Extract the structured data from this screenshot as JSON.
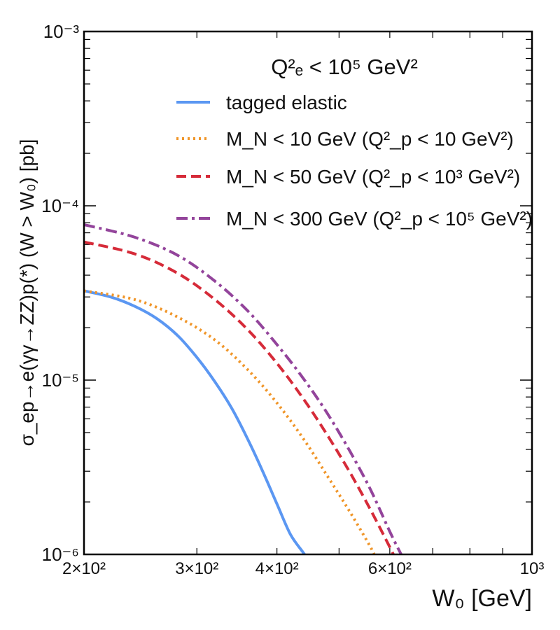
{
  "chart_data": {
    "type": "line",
    "x_scale": "log",
    "y_scale": "log",
    "xlim": [
      200,
      1000
    ],
    "ylim": [
      1e-06,
      0.001
    ],
    "xlabel": "W₀ [GeV]",
    "ylabel": "σ_ep→e(γγ→ZZ)p(*) (W > W₀) [pb]",
    "x_tick_labels": [
      {
        "value": 200,
        "label": "2×10²"
      },
      {
        "value": 300,
        "label": "3×10²"
      },
      {
        "value": 400,
        "label": "4×10²"
      },
      {
        "value": 600,
        "label": "6×10²"
      },
      {
        "value": 1000,
        "label": "10³"
      }
    ],
    "y_tick_labels": [
      {
        "value": 1e-06,
        "label": "10⁻⁶"
      },
      {
        "value": 1e-05,
        "label": "10⁻⁵"
      },
      {
        "value": 0.0001,
        "label": "10⁻⁴"
      },
      {
        "value": 0.001,
        "label": "10⁻³"
      }
    ],
    "legend_title": "Q²ₑ < 10⁵ GeV²",
    "legend_position": "top-right",
    "grid": false,
    "series": [
      {
        "name": "tagged elastic",
        "color": "#5b97f2",
        "style": "solid",
        "x": [
          200,
          220,
          240,
          260,
          280,
          300,
          320,
          340,
          360,
          380,
          400,
          420,
          440,
          450
        ],
        "y": [
          3.25e-05,
          3e-05,
          2.65e-05,
          2.25e-05,
          1.8e-05,
          1.35e-05,
          9.8e-06,
          6.9e-06,
          4.6e-06,
          3e-06,
          1.95e-06,
          1.3e-06,
          1.02e-06,
          9e-07
        ]
      },
      {
        "name": "M_N < 10 GeV (Q²_p < 10 GeV²)",
        "color": "#f0962a",
        "style": "dotted",
        "x": [
          200,
          240,
          280,
          320,
          360,
          400,
          440,
          480,
          520,
          560,
          570
        ],
        "y": [
          3.25e-05,
          2.9e-05,
          2.3e-05,
          1.7e-05,
          1.15e-05,
          7.4e-06,
          4.6e-06,
          2.8e-06,
          1.75e-06,
          1.1e-06,
          9.5e-07
        ]
      },
      {
        "name": "M_N < 50 GeV (Q²_p < 10³ GeV²)",
        "color": "#d62b39",
        "style": "dashed",
        "x": [
          200,
          240,
          280,
          320,
          360,
          400,
          440,
          480,
          520,
          560,
          600,
          610
        ],
        "y": [
          6.2e-05,
          5.3e-05,
          4.1e-05,
          2.9e-05,
          1.95e-05,
          1.25e-05,
          7.8e-06,
          4.8e-06,
          2.95e-06,
          1.8e-06,
          1.1e-06,
          9.7e-07
        ]
      },
      {
        "name": "M_N < 300 GeV (Q²_p < 10⁵ GeV²)",
        "color": "#93449b",
        "style": "dashdot",
        "x": [
          200,
          240,
          280,
          320,
          360,
          400,
          440,
          480,
          520,
          560,
          600,
          625
        ],
        "y": [
          7.8e-05,
          6.6e-05,
          5.2e-05,
          3.7e-05,
          2.5e-05,
          1.6e-05,
          1.02e-05,
          6.4e-06,
          3.9e-06,
          2.35e-06,
          1.35e-06,
          1e-06
        ]
      }
    ]
  }
}
